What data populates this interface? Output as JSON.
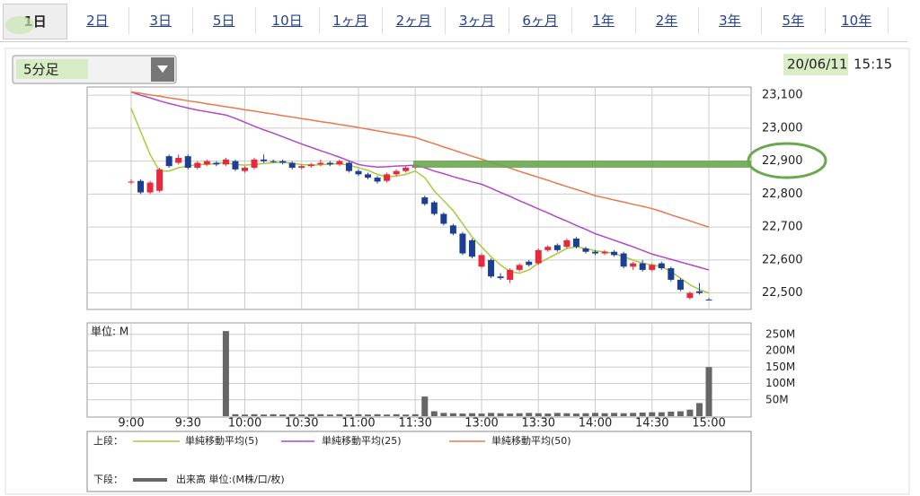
{
  "tabs": [
    "1日",
    "2日",
    "3日",
    "5日",
    "10日",
    "1ヶ月",
    "2ヶ月",
    "3ヶ月",
    "6ヶ月",
    "1年",
    "2年",
    "3年",
    "5年",
    "10年"
  ],
  "interval": "5分足",
  "date": "20/06/11",
  "time": "15:15",
  "chart_data": [
    {
      "type": "candlestick",
      "categories": [
        "9:00",
        null,
        null,
        null,
        null,
        null,
        "9:30",
        null,
        null,
        null,
        null,
        null,
        "10:00",
        null,
        null,
        null,
        null,
        null,
        "10:30",
        null,
        null,
        null,
        null,
        null,
        "11:00",
        null,
        null,
        null,
        null,
        null,
        "11:30",
        null,
        null,
        null,
        null,
        null,
        null,
        "13:00",
        null,
        null,
        null,
        null,
        null,
        "13:30",
        null,
        null,
        null,
        null,
        null,
        "14:00",
        null,
        null,
        null,
        null,
        null,
        "14:30",
        null,
        null,
        null,
        null,
        null,
        "15:00"
      ],
      "open": [
        22835,
        22840,
        22805,
        22810,
        22915,
        22895,
        22915,
        22880,
        22890,
        22895,
        22890,
        22900,
        22870,
        22880,
        22905,
        22900,
        22900,
        22895,
        22880,
        22885,
        22890,
        22895,
        22890,
        22895,
        22870,
        22860,
        22850,
        22840,
        22860,
        22870,
        22880,
        22790,
        22775,
        22740,
        22705,
        22680,
        22660,
        22580,
        22600,
        22550,
        22540,
        22570,
        22595,
        22590,
        22630,
        22645,
        22640,
        22665,
        22635,
        22625,
        22620,
        22625,
        22620,
        22580,
        22590,
        22570,
        22590,
        22575,
        22540,
        22485,
        22505,
        22480
      ],
      "high": [
        22845,
        22845,
        22840,
        22880,
        22920,
        22920,
        22920,
        22900,
        22905,
        22900,
        22910,
        22905,
        22885,
        22910,
        22920,
        22905,
        22905,
        22900,
        22890,
        22895,
        22905,
        22900,
        22905,
        22900,
        22875,
        22865,
        22855,
        22865,
        22875,
        22885,
        22890,
        22795,
        22780,
        22745,
        22710,
        22685,
        22665,
        22620,
        22605,
        22560,
        22575,
        22590,
        22600,
        22635,
        22645,
        22650,
        22665,
        22670,
        22640,
        22630,
        22630,
        22630,
        22625,
        22595,
        22600,
        22590,
        22595,
        22580,
        22545,
        22505,
        22530,
        22485
      ],
      "low": [
        22830,
        22800,
        22800,
        22805,
        22880,
        22890,
        22875,
        22875,
        22885,
        22885,
        22885,
        22870,
        22865,
        22875,
        22895,
        22895,
        22890,
        22875,
        22875,
        22880,
        22885,
        22885,
        22885,
        22865,
        22855,
        22845,
        22832,
        22835,
        22855,
        22865,
        22875,
        22765,
        22735,
        22705,
        22675,
        22615,
        22605,
        22575,
        22545,
        22540,
        22530,
        22565,
        22580,
        22585,
        22625,
        22625,
        22635,
        22635,
        22620,
        22615,
        22615,
        22610,
        22575,
        22570,
        22565,
        22565,
        22570,
        22535,
        22505,
        22480,
        22495,
        22478
      ],
      "close": [
        22838,
        22805,
        22835,
        22875,
        22885,
        22910,
        22880,
        22895,
        22900,
        22890,
        22905,
        22875,
        22880,
        22905,
        22900,
        22900,
        22895,
        22880,
        22885,
        22890,
        22895,
        22890,
        22900,
        22870,
        22860,
        22850,
        22838,
        22860,
        22870,
        22880,
        22885,
        22770,
        22740,
        22710,
        22680,
        22620,
        22610,
        22615,
        22550,
        22545,
        22570,
        22585,
        22585,
        22630,
        22640,
        22630,
        22660,
        22640,
        22625,
        22620,
        22625,
        22615,
        22580,
        22590,
        22570,
        22585,
        22575,
        22540,
        22510,
        22500,
        22500,
        22480
      ],
      "up_color": "#e8283c",
      "down_color": "#1c3f94",
      "overlays": [
        {
          "name": "単純移動平均(5)",
          "color": "#a8cc3c",
          "values": [
            23060,
            22990,
            22920,
            22870,
            22870,
            22880,
            22885,
            22890,
            22890,
            22893,
            22895,
            22890,
            22888,
            22890,
            22893,
            22895,
            22897,
            22893,
            22890,
            22888,
            22889,
            22891,
            22892,
            22888,
            22880,
            22872,
            22860,
            22852,
            22855,
            22860,
            22870,
            22850,
            22810,
            22780,
            22750,
            22710,
            22670,
            22640,
            22610,
            22585,
            22565,
            22560,
            22570,
            22590,
            22605,
            22620,
            22635,
            22640,
            22635,
            22628,
            22625,
            22620,
            22610,
            22600,
            22590,
            22585,
            22580,
            22565,
            22545,
            22525,
            22510,
            22500
          ]
        },
        {
          "name": "単純移動平均(25)",
          "color": "#b048c8",
          "values": [
            23110,
            23100,
            23092,
            23083,
            23075,
            23068,
            23061,
            23055,
            23050,
            23045,
            23040,
            23030,
            23018,
            23006,
            22995,
            22985,
            22974,
            22963,
            22952,
            22942,
            22932,
            22922,
            22912,
            22901,
            22890,
            22885,
            22882,
            22883,
            22885,
            22886,
            22888,
            22880,
            22870,
            22862,
            22853,
            22845,
            22837,
            22830,
            22818,
            22805,
            22793,
            22780,
            22768,
            22755,
            22743,
            22730,
            22718,
            22705,
            22693,
            22680,
            22670,
            22660,
            22650,
            22640,
            22629,
            22618,
            22610,
            22602,
            22594,
            22586,
            22578,
            22570
          ]
        },
        {
          "name": "単純移動平均(50)",
          "color": "#e8784c",
          "values": [
            23110,
            23106,
            23101,
            23097,
            23092,
            23088,
            23083,
            23079,
            23074,
            23070,
            23065,
            23061,
            23056,
            23052,
            23047,
            23043,
            23038,
            23034,
            23029,
            23025,
            23020,
            23016,
            23011,
            23007,
            23002,
            22997,
            22992,
            22987,
            22982,
            22977,
            22972,
            22962,
            22953,
            22943,
            22934,
            22924,
            22915,
            22906,
            22897,
            22888,
            22879,
            22869,
            22860,
            22851,
            22842,
            22832,
            22823,
            22814,
            22805,
            22795,
            22789,
            22782,
            22776,
            22769,
            22763,
            22756,
            22747,
            22737,
            22728,
            22719,
            22709,
            22700
          ]
        }
      ],
      "ylim": [
        22450,
        23125
      ],
      "yticks": [
        {
          "value": 22500,
          "label": "22,500"
        },
        {
          "value": 22600,
          "label": "22,600"
        },
        {
          "value": 22700,
          "label": "22,700"
        },
        {
          "value": 22800,
          "label": "22,800"
        },
        {
          "value": 22900,
          "label": "22,900"
        },
        {
          "value": 23000,
          "label": "23,000"
        },
        {
          "value": 23100,
          "label": "23,100"
        }
      ],
      "grid": true,
      "legend_title": "上段："
    },
    {
      "type": "bar",
      "unit_label": "単位: M",
      "series": [
        {
          "name": "出来高 単位:(M株/口/枚)",
          "color": "#666666",
          "values": [
            null,
            null,
            null,
            null,
            null,
            null,
            null,
            null,
            null,
            null,
            260,
            6,
            5,
            6,
            5,
            6,
            5,
            6,
            5,
            6,
            6,
            5,
            6,
            5,
            6,
            5,
            6,
            5,
            6,
            5,
            6,
            60,
            15,
            10,
            9,
            8,
            9,
            8,
            10,
            9,
            8,
            9,
            10,
            9,
            8,
            10,
            9,
            8,
            9,
            10,
            9,
            10,
            9,
            10,
            11,
            12,
            12,
            14,
            15,
            20,
            40,
            150
          ]
        }
      ],
      "ylim": [
        0,
        285
      ],
      "yticks": [
        {
          "value": 50,
          "label": "50M"
        },
        {
          "value": 100,
          "label": "100M"
        },
        {
          "value": 150,
          "label": "150M"
        },
        {
          "value": 200,
          "label": "200M"
        },
        {
          "value": 250,
          "label": "250M"
        }
      ],
      "grid": true,
      "legend_title": "下段："
    }
  ]
}
